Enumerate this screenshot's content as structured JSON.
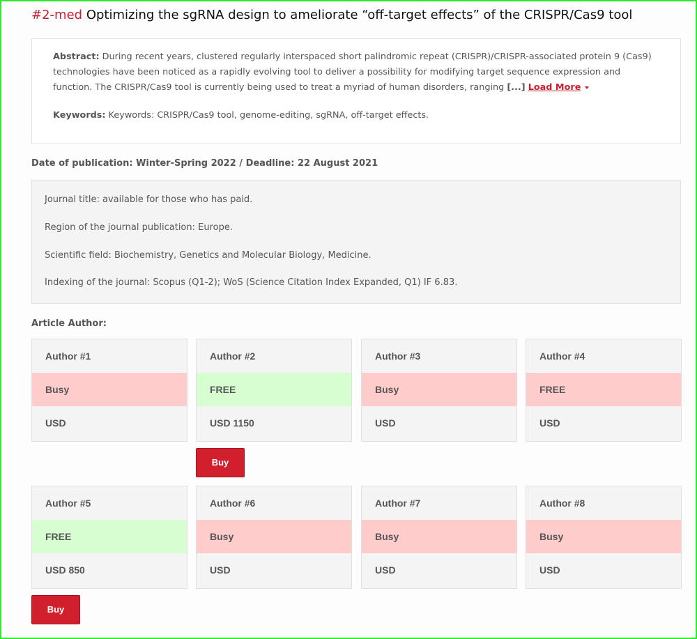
{
  "article": {
    "tag": "#2-med",
    "title": "Optimizing the sgRNA design to ameliorate “off-target effects” of the CRISPR/Cas9 tool"
  },
  "abstract": {
    "label": "Abstract:",
    "text": "During recent years, clustered regularly interspaced short palindromic repeat (CRISPR)/CRISPR-associated protein 9 (Cas9) technologies have been noticed as a rapidly evolving tool to deliver a possibility for modifying target sequence expression and function. The CRISPR/Cas9 tool is currently being used to treat a myriad of human disorders, ranging",
    "ellipsis": "[...]",
    "load_more": "Load More"
  },
  "keywords": {
    "label": "Keywords:",
    "text": "Keywords: CRISPR/Cas9 tool, genome-editing, sgRNA, off-target effects."
  },
  "publication": {
    "date_line": "Date of publication: Winter-Spring 2022 / Deadline: 22 August 2021"
  },
  "journal_info": {
    "title": "Journal title: available for those who has paid.",
    "region": "Region of the journal publication: Europe.",
    "field": "Scientific field: Biochemistry, Genetics and Molecular Biology, Medicine.",
    "indexing": "Indexing of the journal: Scopus (Q1-2); WoS (Science Citation Index Expanded, Q1) IF 6.83."
  },
  "authors_label": "Article Author:",
  "authors": [
    {
      "name": "Author #1",
      "status": "Busy",
      "price": "USD"
    },
    {
      "name": "Author #2",
      "status": "FREE",
      "price": "USD 1150"
    },
    {
      "name": "Author #3",
      "status": "Busy",
      "price": "USD"
    },
    {
      "name": "Author #4",
      "status": "FREE",
      "price": "USD"
    },
    {
      "name": "Author #5",
      "status": "FREE",
      "price": "USD 850"
    },
    {
      "name": "Author #6",
      "status": "Busy",
      "price": "USD"
    },
    {
      "name": "Author #7",
      "status": "Busy",
      "price": "USD"
    },
    {
      "name": "Author #8",
      "status": "Busy",
      "price": "USD"
    }
  ],
  "buy_label": "Buy",
  "colors": {
    "accent": "#c8202f",
    "busy": "#ffcccc",
    "free": "#d6fed0",
    "button": "#d11f2d",
    "frame": "#2ee82e"
  }
}
